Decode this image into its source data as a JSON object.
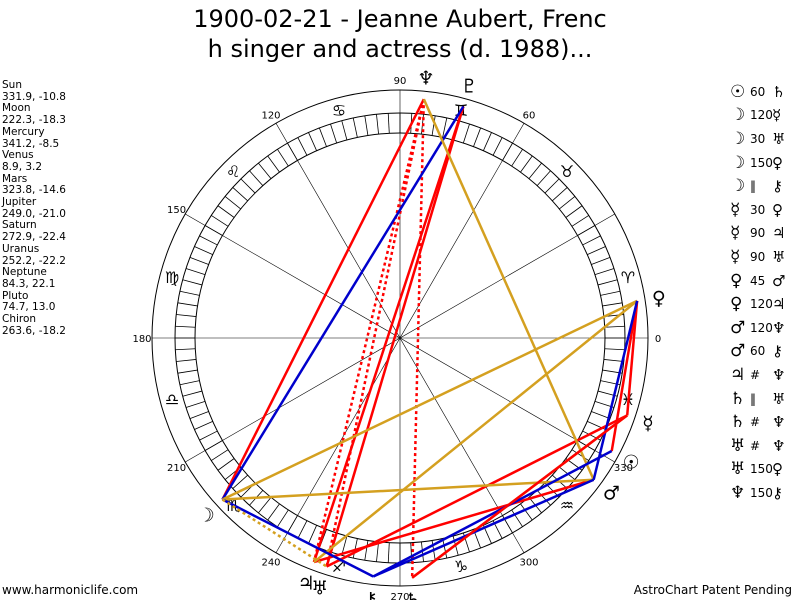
{
  "header": {
    "title_line1": "1900-02-21 - Jeanne Aubert, Frenc",
    "title_line2": "h singer and actress (d. 1988)..."
  },
  "planets": [
    {
      "name": "Sun",
      "coords": "331.9, -10.8"
    },
    {
      "name": "Moon",
      "coords": "222.3, -18.3"
    },
    {
      "name": "Mercury",
      "coords": "341.2, -8.5"
    },
    {
      "name": "Venus",
      "coords": "8.9, 3.2"
    },
    {
      "name": "Mars",
      "coords": "323.8, -14.6"
    },
    {
      "name": "Jupiter",
      "coords": "249.0, -21.0"
    },
    {
      "name": "Saturn",
      "coords": "272.9, -22.4"
    },
    {
      "name": "Uranus",
      "coords": "252.2, -22.2"
    },
    {
      "name": "Neptune",
      "coords": "84.3, 22.1"
    },
    {
      "name": "Pluto",
      "coords": "74.7, 13.0"
    },
    {
      "name": "Chiron",
      "coords": "263.6, -18.2"
    }
  ],
  "aspects": [
    {
      "p1": "☉",
      "sym": "60",
      "p2": "♄"
    },
    {
      "p1": "☽",
      "sym": "120",
      "p2": "☿"
    },
    {
      "p1": "☽",
      "sym": "30",
      "p2": "♅"
    },
    {
      "p1": "☽",
      "sym": "150",
      "p2": "♀"
    },
    {
      "p1": "☽",
      "sym": "‖",
      "p2": "⚷"
    },
    {
      "p1": "☿",
      "sym": "30",
      "p2": "♀"
    },
    {
      "p1": "☿",
      "sym": "90",
      "p2": "♃"
    },
    {
      "p1": "☿",
      "sym": "90",
      "p2": "♅"
    },
    {
      "p1": "♀",
      "sym": "45",
      "p2": "♂"
    },
    {
      "p1": "♀",
      "sym": "120",
      "p2": "♃"
    },
    {
      "p1": "♂",
      "sym": "120",
      "p2": "♆"
    },
    {
      "p1": "♂",
      "sym": "60",
      "p2": "⚷"
    },
    {
      "p1": "♃",
      "sym": "#",
      "p2": "♆"
    },
    {
      "p1": "♄",
      "sym": "‖",
      "p2": "♅"
    },
    {
      "p1": "♄",
      "sym": "#",
      "p2": "♆"
    },
    {
      "p1": "♅",
      "sym": "#",
      "p2": "♆"
    },
    {
      "p1": "♅",
      "sym": "150",
      "p2": "♀"
    },
    {
      "p1": "♆",
      "sym": "150",
      "p2": "⚷"
    }
  ],
  "wheel": {
    "degree_labels": [
      "0",
      "60",
      "90",
      "120",
      "150",
      "180",
      "210",
      "240",
      "270",
      "300",
      "330"
    ],
    "signs": [
      "♈",
      "♉",
      "♊",
      "♋",
      "♌",
      "♍",
      "♎",
      "♏",
      "♐",
      "♑",
      "♒",
      "♓"
    ],
    "planet_glyphs": [
      {
        "glyph": "☉",
        "lon": 331.9
      },
      {
        "glyph": "☽",
        "lon": 222.3
      },
      {
        "glyph": "☿",
        "lon": 341.2
      },
      {
        "glyph": "♀",
        "lon": 8.9
      },
      {
        "glyph": "♂",
        "lon": 323.8
      },
      {
        "glyph": "♃",
        "lon": 249.0
      },
      {
        "glyph": "♄",
        "lon": 272.9
      },
      {
        "glyph": "♅",
        "lon": 252.2
      },
      {
        "glyph": "♆",
        "lon": 84.3
      },
      {
        "glyph": "♇",
        "lon": 74.7
      },
      {
        "glyph": "⚷",
        "lon": 263.6
      }
    ],
    "colors": {
      "red": "#ff0000",
      "blue": "#0000cc",
      "gold": "#d4a020"
    }
  },
  "footer": {
    "left": "www.harmoniclife.com",
    "right": "AstroChart Patent Pending"
  }
}
